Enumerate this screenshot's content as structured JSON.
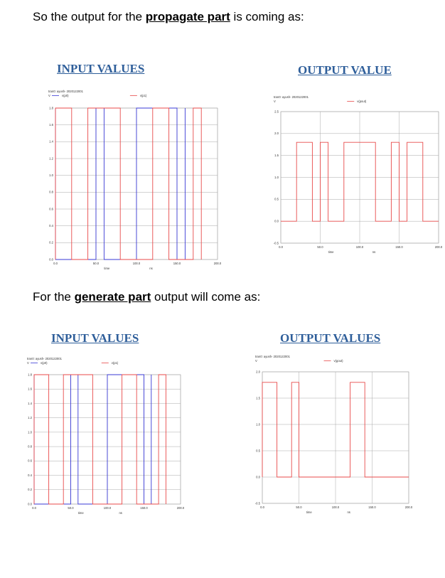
{
  "colors": {
    "heading": "#2e5e9a",
    "red_trace": "#e84a4a",
    "blue_trace": "#3a3ad6",
    "grid": "#a8a8a8"
  },
  "sections": [
    {
      "text_before": "So the output for the ",
      "bold": "propagate part",
      "text_after": " is coming as:",
      "left_heading": "INPUT VALUES ",
      "right_heading": "OUTPUT VALUE"
    },
    {
      "text_before": "For the ",
      "bold": "generate part",
      "text_after": " output will come as:",
      "left_heading": "INPUT VALUES",
      "right_heading": "OUTPUT VALUES"
    }
  ],
  "chart_data": [
    {
      "type": "line",
      "subtitle_line1": "tran0: ayush- 2020122001",
      "subtitle_line2": "V",
      "xlabel": "time",
      "xunit": "ns",
      "xlim": [
        0,
        200
      ],
      "ylim": [
        0,
        1.8
      ],
      "xticks": [
        "0.0",
        "50.0",
        "100.0",
        "150.0",
        "200.0"
      ],
      "yticks": [
        "0.0",
        "0.2",
        "0.4",
        "0.6",
        "0.8",
        "1.0",
        "1.2",
        "1.4",
        "1.6",
        "1.8"
      ],
      "series": [
        {
          "name": "v(p0)",
          "color": "blue",
          "x": [
            0,
            0,
            50,
            50,
            60,
            60,
            100,
            100,
            150,
            150,
            160,
            160
          ],
          "y": [
            1.8,
            0,
            0,
            1.8,
            1.8,
            0,
            0,
            1.8,
            1.8,
            0,
            0,
            1.8
          ]
        },
        {
          "name": "v(p1)",
          "color": "red",
          "x": [
            0,
            0,
            20,
            20,
            40,
            40,
            80,
            80,
            120,
            120,
            140,
            140,
            170,
            170,
            180,
            180
          ],
          "y": [
            0,
            1.8,
            1.8,
            0,
            0,
            1.8,
            1.8,
            0,
            0,
            1.8,
            1.8,
            0,
            0,
            1.8,
            1.8,
            0
          ]
        }
      ]
    },
    {
      "type": "line",
      "subtitle_line1": "tran0: ayush- 2020122001",
      "subtitle_line2": "V",
      "xlabel": "time",
      "xunit": "ns",
      "xlim": [
        0,
        200
      ],
      "ylim": [
        -0.5,
        2.5
      ],
      "xticks": [
        "0.0",
        "50.0",
        "100.0",
        "150.0",
        "200.0"
      ],
      "yticks": [
        "-0.5",
        "0.0",
        "0.5",
        "1.0",
        "1.5",
        "2.0",
        "2.5"
      ],
      "series": [
        {
          "name": "v(pout)",
          "color": "red",
          "x": [
            0,
            20,
            20,
            40,
            40,
            50,
            50,
            60,
            60,
            80,
            80,
            120,
            120,
            140,
            140,
            150,
            150,
            160,
            160,
            180,
            180,
            200
          ],
          "y": [
            0,
            0,
            1.8,
            1.8,
            0,
            0,
            1.8,
            1.8,
            0,
            0,
            1.8,
            1.8,
            0,
            0,
            1.8,
            1.8,
            0,
            0,
            1.8,
            1.8,
            0,
            0
          ]
        }
      ]
    },
    {
      "type": "line",
      "subtitle_line1": "tran0: ayush- 2020122001",
      "subtitle_line2": "V",
      "xlabel": "time",
      "xunit": "ns",
      "xlim": [
        0,
        200
      ],
      "ylim": [
        0,
        1.8
      ],
      "xticks": [
        "0.0",
        "50.0",
        "100.0",
        "150.0",
        "200.0"
      ],
      "yticks": [
        "0.0",
        "0.2",
        "0.4",
        "0.6",
        "0.8",
        "1.0",
        "1.2",
        "1.4",
        "1.6",
        "1.8"
      ],
      "series": [
        {
          "name": "v(p0)",
          "color": "blue",
          "x": [
            0,
            0,
            50,
            50,
            60,
            60,
            100,
            100,
            150,
            150,
            160,
            160
          ],
          "y": [
            1.8,
            0,
            0,
            1.8,
            1.8,
            0,
            0,
            1.8,
            1.8,
            0,
            0,
            1.8
          ]
        },
        {
          "name": "v(p1)",
          "color": "red",
          "x": [
            0,
            0,
            20,
            20,
            40,
            40,
            80,
            80,
            120,
            120,
            140,
            140,
            170,
            170,
            180,
            180
          ],
          "y": [
            0,
            1.8,
            1.8,
            0,
            0,
            1.8,
            1.8,
            0,
            0,
            1.8,
            1.8,
            0,
            0,
            1.8,
            1.8,
            0
          ]
        }
      ]
    },
    {
      "type": "line",
      "subtitle_line1": "tran0: ayush- 2020122001",
      "subtitle_line2": "V",
      "xlabel": "time",
      "xunit": "ns",
      "xlim": [
        0,
        200
      ],
      "ylim": [
        -0.5,
        2.0
      ],
      "xticks": [
        "0.0",
        "50.0",
        "100.0",
        "150.0",
        "200.0"
      ],
      "yticks": [
        "-0.5",
        "0.0",
        "0.5",
        "1.0",
        "1.5",
        "2.0"
      ],
      "series": [
        {
          "name": "v(gout)",
          "color": "red",
          "x": [
            0,
            0,
            20,
            20,
            40,
            40,
            50,
            50,
            120,
            120,
            140,
            140,
            200
          ],
          "y": [
            0,
            1.8,
            1.8,
            0,
            0,
            1.8,
            1.8,
            0,
            0,
            1.8,
            1.8,
            0,
            0
          ]
        }
      ]
    }
  ]
}
